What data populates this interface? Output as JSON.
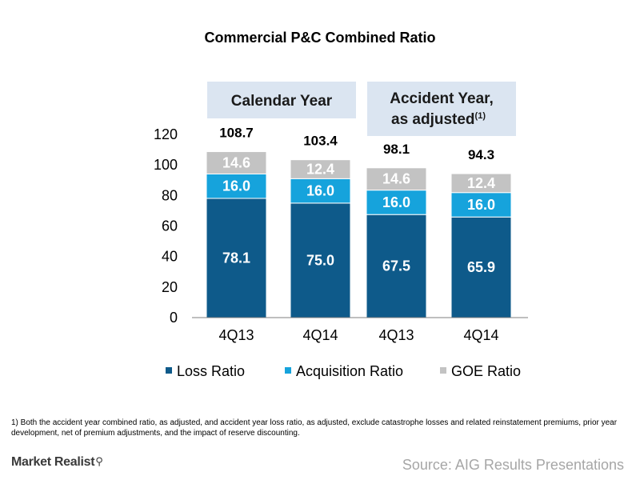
{
  "chart_data": {
    "type": "bar",
    "stacked": true,
    "title": "Commercial P&C Combined Ratio",
    "categories": [
      "4Q13",
      "4Q14",
      "4Q13",
      "4Q14"
    ],
    "groups": [
      {
        "label_line1": "Calendar Year",
        "label_line2": "",
        "label_sup": "",
        "categories": [
          0,
          1
        ]
      },
      {
        "label_line1": "Accident Year,",
        "label_line2": "as adjusted",
        "label_sup": "(1)",
        "categories": [
          2,
          3
        ]
      }
    ],
    "series": [
      {
        "name": "Loss Ratio",
        "color": "#0e5a8a",
        "label_color": "#ffffff",
        "values": [
          78.1,
          75.0,
          67.5,
          65.9
        ],
        "labels": [
          "78.1",
          "75.0",
          "67.5",
          "65.9"
        ]
      },
      {
        "name": "Acquisition Ratio",
        "color": "#16a3dc",
        "label_color": "#ffffff",
        "values": [
          16.0,
          16.0,
          16.0,
          16.0
        ],
        "labels": [
          "16.0",
          "16.0",
          "16.0",
          "16.0"
        ]
      },
      {
        "name": "GOE Ratio",
        "color": "#c3c3c3",
        "label_color": "#ffffff",
        "values": [
          14.6,
          12.4,
          14.6,
          12.4
        ],
        "labels": [
          "14.6",
          "12.4",
          "14.6",
          "12.4"
        ]
      }
    ],
    "totals": [
      "108.7",
      "103.4",
      "98.1",
      "94.3"
    ],
    "ylim": [
      0,
      120
    ],
    "yticks": [
      0,
      20,
      40,
      60,
      80,
      100,
      120
    ],
    "grid": false,
    "legend_position": "bottom"
  },
  "footnote": "1) Both the accident year combined ratio, as adjusted, and accident year loss ratio, as adjusted, exclude catastrophe losses and related reinstatement premiums, prior year development, net of premium adjustments, and the impact of reserve discounting.",
  "brand": {
    "name": "Market Realist",
    "icon": "magnifier-icon",
    "icon_glyph": "⚲"
  },
  "source": "Source: AIG Results Presentations"
}
